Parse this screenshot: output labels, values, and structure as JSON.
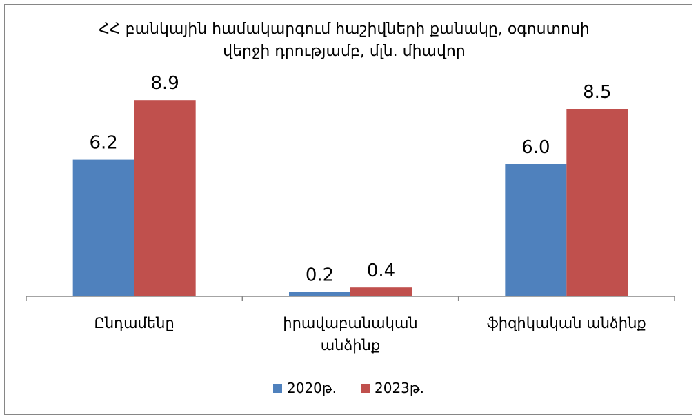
{
  "chart_data": {
    "type": "bar",
    "title_lines": [
      "ՀՀ բանկային համակարգում հաշիվների քանակը, օգոստոսի",
      "վերջի դրությամբ, մլն. միավոր"
    ],
    "categories": [
      [
        "Ընդամենը"
      ],
      [
        "իրավաբանական",
        "անձինք"
      ],
      [
        "ֆիզիկական անձինք"
      ]
    ],
    "series": [
      {
        "name": "2020թ.",
        "color": "#4F81BD",
        "values": [
          6.2,
          0.2,
          6.0
        ],
        "labels": [
          "6.2",
          "0.2",
          "6.0"
        ]
      },
      {
        "name": "2023թ.",
        "color": "#C0504D",
        "values": [
          8.9,
          0.4,
          8.5
        ],
        "labels": [
          "8.9",
          "0.4",
          "8.5"
        ]
      }
    ],
    "ylim": [
      0,
      10
    ],
    "grid": false,
    "legend_position": "bottom"
  }
}
